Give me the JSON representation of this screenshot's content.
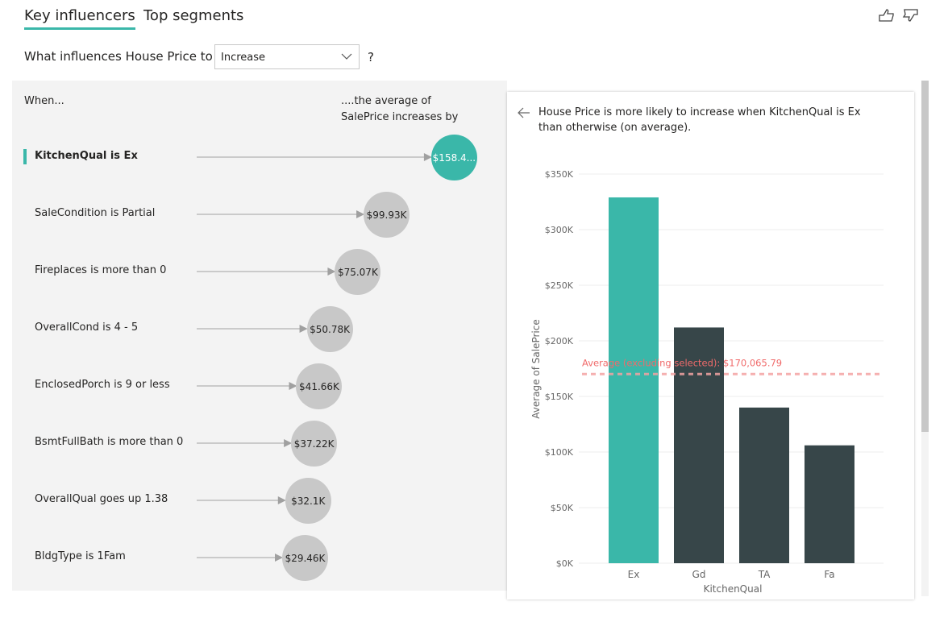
{
  "tabs": [
    {
      "label": "Key influencers",
      "active": true
    },
    {
      "label": "Top segments",
      "active": false
    }
  ],
  "feedback": {
    "like_icon": "thumbs-up-icon",
    "dislike_icon": "thumbs-down-icon"
  },
  "question": {
    "prefix": "What influences House Price to",
    "selected": "Increase",
    "suffix": "?"
  },
  "influencers": {
    "when_header": "When...",
    "value_header": "....the average of SalePrice increases by",
    "accent": "#3ab7a9",
    "items": [
      {
        "label": "KitchenQual is Ex",
        "value_label": "$158.4...",
        "value_k": 158.4,
        "selected": true
      },
      {
        "label": "SaleCondition is Partial",
        "value_label": "$99.93K",
        "value_k": 99.93
      },
      {
        "label": "Fireplaces is more than 0",
        "value_label": "$75.07K",
        "value_k": 75.07
      },
      {
        "label": "OverallCond is 4 - 5",
        "value_label": "$50.78K",
        "value_k": 50.78
      },
      {
        "label": "EnclosedPorch is 9 or less",
        "value_label": "$41.66K",
        "value_k": 41.66
      },
      {
        "label": "BsmtFullBath is more than 0",
        "value_label": "$37.22K",
        "value_k": 37.22
      },
      {
        "label": "OverallQual goes up 1.38",
        "value_label": "$32.1K",
        "value_k": 32.1
      },
      {
        "label": "BldgType is 1Fam",
        "value_label": "$29.46K",
        "value_k": 29.46
      }
    ]
  },
  "detail": {
    "description": "House Price is more likely to increase when KitchenQual is Ex than otherwise (on average)."
  },
  "chart_data": {
    "type": "bar",
    "categories": [
      "Ex",
      "Gd",
      "TA",
      "Fa"
    ],
    "values": [
      329000,
      212000,
      140000,
      106000
    ],
    "xlabel": "KitchenQual",
    "ylabel": "Average of SalePrice",
    "ylim": [
      0,
      350000
    ],
    "yticks": [
      "$0K",
      "$50K",
      "$100K",
      "$150K",
      "$200K",
      "$250K",
      "$300K",
      "$350K"
    ],
    "grid": true,
    "colors": {
      "selected": "#3ab7a9",
      "other": "#374649",
      "reference": "#f4a3a3",
      "reference_text": "#f06b6b"
    },
    "reference_line": {
      "value": 170065.79,
      "label": "Average (excluding selected): $170,065.79"
    }
  }
}
